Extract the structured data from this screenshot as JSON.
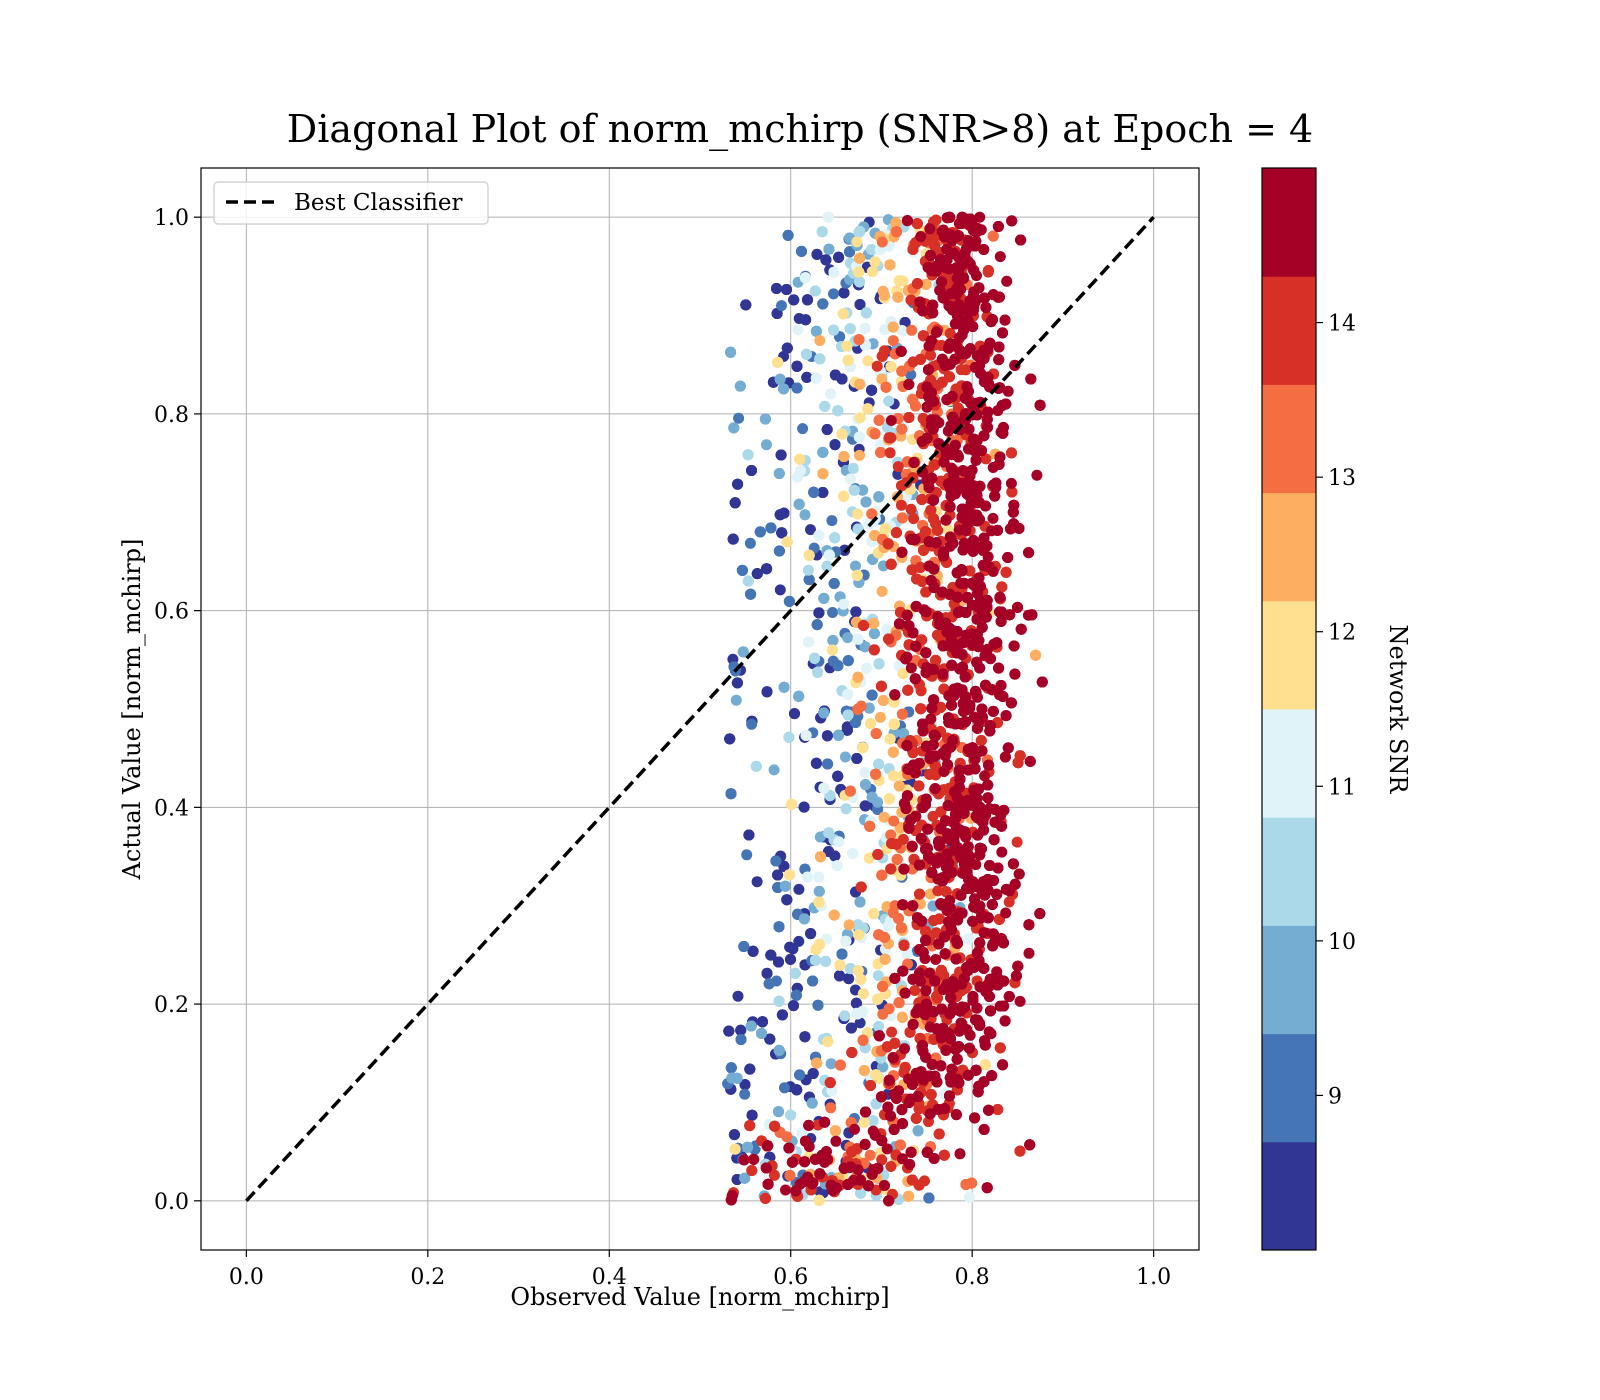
{
  "chart_data": {
    "type": "scatter",
    "title": "Diagonal Plot of norm_mchirp (SNR>8) at Epoch = 4",
    "xlabel": "Observed Value [norm_mchirp]",
    "ylabel": "Actual Value [norm_mchirp]",
    "xlim": [
      -0.05,
      1.05
    ],
    "ylim": [
      -0.05,
      1.05
    ],
    "x_ticks": [
      "0.0",
      "0.2",
      "0.4",
      "0.6",
      "0.8",
      "1.0"
    ],
    "y_ticks": [
      "0.0",
      "0.2",
      "0.4",
      "0.6",
      "0.8",
      "1.0"
    ],
    "grid": true,
    "legend": {
      "placement": "upper-left",
      "entries": [
        "Best Classifier"
      ]
    },
    "reference_line": {
      "name": "Best Classifier",
      "x": [
        0.0,
        1.0
      ],
      "y": [
        0.0,
        1.0
      ],
      "style": "dashed",
      "color": "#000000"
    },
    "colorbar": {
      "label": "Network SNR",
      "range": [
        8,
        15
      ],
      "ticks": [
        "9",
        "10",
        "11",
        "12",
        "13",
        "14"
      ],
      "levels": 10,
      "colors": [
        "#313695",
        "#4575b4",
        "#74add1",
        "#abd9e9",
        "#e0f3f8",
        "#fee090",
        "#fdae61",
        "#f46d43",
        "#d73027",
        "#a50026"
      ]
    },
    "series": [
      {
        "name": "",
        "description_points": "dense vertical cloud; high-SNR points clustered near x≈0.8 across y from 0.05 to 1.0, low-SNR points spread to x≈0.55–0.72",
        "x_range": [
          0.53,
          0.88
        ],
        "y_range": [
          0.0,
          1.0
        ]
      }
    ]
  }
}
